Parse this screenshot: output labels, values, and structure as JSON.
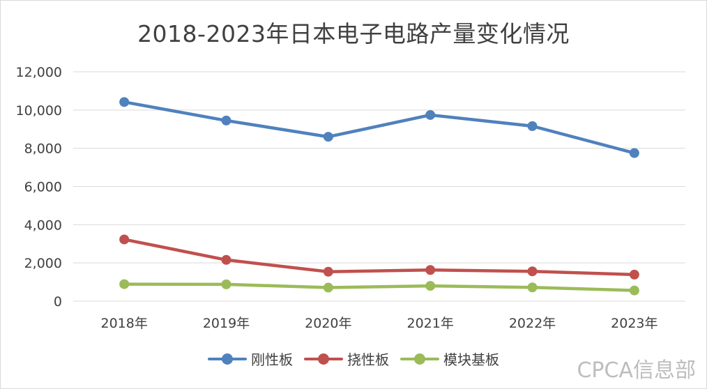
{
  "chart_data": {
    "type": "line",
    "title": "2018-2023年日本电子电路产量变化情况",
    "categories": [
      "2018年",
      "2019年",
      "2020年",
      "2021年",
      "2022年",
      "2023年"
    ],
    "series": [
      {
        "name": "刚性板",
        "color": "#4f81bd",
        "values": [
          10420,
          9450,
          8600,
          9740,
          9160,
          7750
        ]
      },
      {
        "name": "挠性板",
        "color": "#c0504d",
        "values": [
          3230,
          2160,
          1540,
          1630,
          1560,
          1390
        ]
      },
      {
        "name": "模块基板",
        "color": "#9bbb59",
        "values": [
          890,
          880,
          710,
          800,
          720,
          560
        ]
      }
    ],
    "ylim": [
      0,
      12000
    ],
    "yticks": [
      0,
      2000,
      4000,
      6000,
      8000,
      10000,
      12000
    ],
    "ytick_labels": [
      "0",
      "2,000",
      "4,000",
      "6,000",
      "8,000",
      "10,000",
      "12,000"
    ],
    "xlabel": "",
    "ylabel": "",
    "grid": true,
    "legend_position": "bottom"
  },
  "watermark": "CPCA信息部"
}
